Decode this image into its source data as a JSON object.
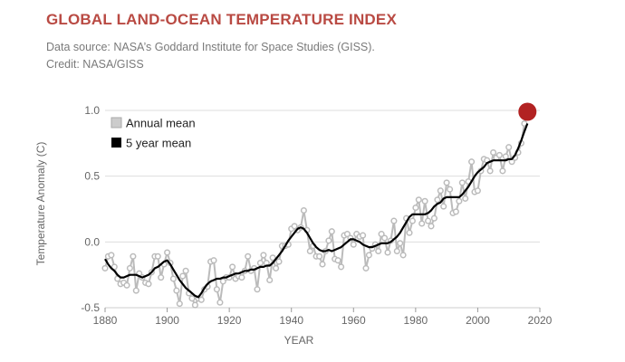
{
  "header": {
    "title": "GLOBAL LAND-OCEAN TEMPERATURE INDEX",
    "source": "Data source: NASA’s Goddard Institute for Space Studies (GISS).",
    "credit": "Credit: NASA/GISS"
  },
  "chart_data": {
    "type": "line",
    "xlabel": "YEAR",
    "ylabel": "Temperature Anomaly (C)",
    "xlim": [
      1880,
      2020
    ],
    "ylim": [
      -0.5,
      1.0
    ],
    "xticks": [
      1880,
      1900,
      1920,
      1940,
      1960,
      1980,
      2000,
      2020
    ],
    "yticks": [
      "-0.5",
      "0.0",
      "0.5",
      "1.0"
    ],
    "legend_position": "top-left",
    "grid": "horizontal",
    "colors": {
      "annual": "#bbbbbb",
      "five_year": "#000000",
      "highlight": "#b22222"
    },
    "series": [
      {
        "name": "Annual mean",
        "x_start": 1880,
        "values": [
          -0.2,
          -0.11,
          -0.1,
          -0.19,
          -0.28,
          -0.32,
          -0.31,
          -0.33,
          -0.2,
          -0.11,
          -0.37,
          -0.24,
          -0.27,
          -0.31,
          -0.32,
          -0.23,
          -0.11,
          -0.11,
          -0.27,
          -0.17,
          -0.08,
          -0.16,
          -0.28,
          -0.37,
          -0.47,
          -0.26,
          -0.22,
          -0.39,
          -0.43,
          -0.48,
          -0.43,
          -0.44,
          -0.36,
          -0.34,
          -0.15,
          -0.14,
          -0.36,
          -0.46,
          -0.3,
          -0.27,
          -0.27,
          -0.19,
          -0.28,
          -0.26,
          -0.27,
          -0.22,
          -0.11,
          -0.22,
          -0.2,
          -0.36,
          -0.16,
          -0.1,
          -0.16,
          -0.29,
          -0.12,
          -0.2,
          -0.15,
          -0.03,
          -0.03,
          -0.02,
          0.1,
          0.12,
          0.09,
          0.11,
          0.24,
          0.09,
          -0.07,
          -0.03,
          -0.11,
          -0.11,
          -0.17,
          -0.07,
          0.01,
          0.08,
          -0.13,
          -0.14,
          -0.19,
          0.05,
          0.06,
          0.03,
          -0.02,
          0.06,
          0.04,
          0.05,
          -0.2,
          -0.1,
          -0.05,
          -0.02,
          -0.07,
          0.06,
          0.03,
          -0.08,
          0.01,
          0.16,
          -0.07,
          -0.01,
          -0.1,
          0.18,
          0.07,
          0.16,
          0.26,
          0.32,
          0.14,
          0.31,
          0.16,
          0.12,
          0.18,
          0.32,
          0.39,
          0.27,
          0.45,
          0.4,
          0.22,
          0.23,
          0.31,
          0.45,
          0.33,
          0.46,
          0.61,
          0.38,
          0.39,
          0.54,
          0.63,
          0.62,
          0.54,
          0.68,
          0.64,
          0.66,
          0.54,
          0.65,
          0.72,
          0.61,
          0.64,
          0.68,
          0.75,
          0.9,
          0.99
        ]
      },
      {
        "name": "5 year mean",
        "x_start": 1880,
        "values": [
          -0.13,
          -0.17,
          -0.2,
          -0.22,
          -0.25,
          -0.27,
          -0.27,
          -0.26,
          -0.25,
          -0.25,
          -0.25,
          -0.26,
          -0.27,
          -0.26,
          -0.25,
          -0.23,
          -0.2,
          -0.19,
          -0.17,
          -0.15,
          -0.14,
          -0.17,
          -0.21,
          -0.25,
          -0.29,
          -0.32,
          -0.35,
          -0.37,
          -0.39,
          -0.41,
          -0.42,
          -0.39,
          -0.35,
          -0.32,
          -0.3,
          -0.29,
          -0.28,
          -0.28,
          -0.27,
          -0.27,
          -0.26,
          -0.25,
          -0.24,
          -0.24,
          -0.23,
          -0.22,
          -0.22,
          -0.21,
          -0.21,
          -0.2,
          -0.19,
          -0.19,
          -0.18,
          -0.18,
          -0.16,
          -0.13,
          -0.1,
          -0.07,
          -0.03,
          0.01,
          0.04,
          0.07,
          0.1,
          0.11,
          0.1,
          0.07,
          0.03,
          -0.01,
          -0.04,
          -0.06,
          -0.07,
          -0.07,
          -0.06,
          -0.07,
          -0.06,
          -0.05,
          -0.04,
          -0.02,
          0.0,
          0.02,
          0.02,
          0.01,
          0.0,
          -0.02,
          -0.03,
          -0.04,
          -0.04,
          -0.03,
          -0.02,
          -0.01,
          -0.01,
          -0.01,
          0.0,
          0.02,
          0.04,
          0.07,
          0.11,
          0.15,
          0.19,
          0.21,
          0.21,
          0.21,
          0.21,
          0.21,
          0.22,
          0.24,
          0.27,
          0.29,
          0.3,
          0.33,
          0.34,
          0.34,
          0.34,
          0.34,
          0.34,
          0.36,
          0.39,
          0.42,
          0.46,
          0.5,
          0.53,
          0.55,
          0.57,
          0.6,
          0.61,
          0.62,
          0.62,
          0.62,
          0.62,
          0.62,
          0.63,
          0.63,
          0.66,
          0.71,
          0.77,
          0.84,
          0.9
        ]
      }
    ]
  }
}
